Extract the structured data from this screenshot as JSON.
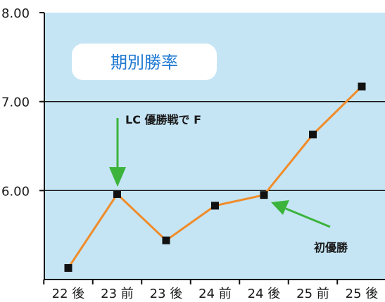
{
  "chart_data": {
    "type": "line",
    "title": "期別勝率",
    "categories": [
      "22 後",
      "23 前",
      "23 後",
      "24 前",
      "24 後",
      "25 前",
      "25 後"
    ],
    "values": [
      5.13,
      5.96,
      5.44,
      5.83,
      5.95,
      6.63,
      7.17
    ],
    "ylim": [
      5.0,
      8.0
    ],
    "yticks": [
      "6.00",
      "7.00",
      "8.00"
    ],
    "ytick_values": [
      6.0,
      7.0,
      8.0
    ],
    "grid": true,
    "colors": {
      "plot_bg": "#c5e5f5",
      "line": "#f08c2a",
      "marker": "#111111",
      "arrow": "#3cb43c",
      "title": "#1e78d2"
    },
    "annotations": [
      {
        "text": "LC 優勝戦で F",
        "point_index": 1
      },
      {
        "text": "初優勝",
        "point_index": 4
      }
    ]
  }
}
